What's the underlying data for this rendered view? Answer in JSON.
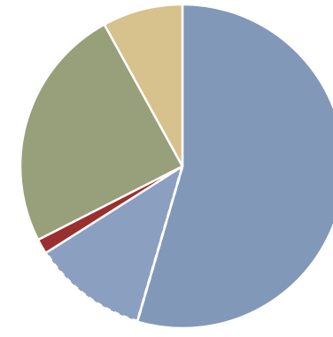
{
  "chart_data": {
    "type": "pie",
    "title": "",
    "start_angle_deg": 0,
    "direction": "clockwise",
    "slices": [
      {
        "value": 54.5,
        "color": "#8198b8"
      },
      {
        "value": 11.5,
        "color": "#8b9fc0"
      },
      {
        "value": 1.5,
        "color": "#9b2f2f"
      },
      {
        "value": 24.5,
        "color": "#98a07b"
      },
      {
        "value": 8.0,
        "color": "#d7c18c"
      }
    ],
    "dashed_boundary_after_slice": 0,
    "background": "#ffffff"
  }
}
